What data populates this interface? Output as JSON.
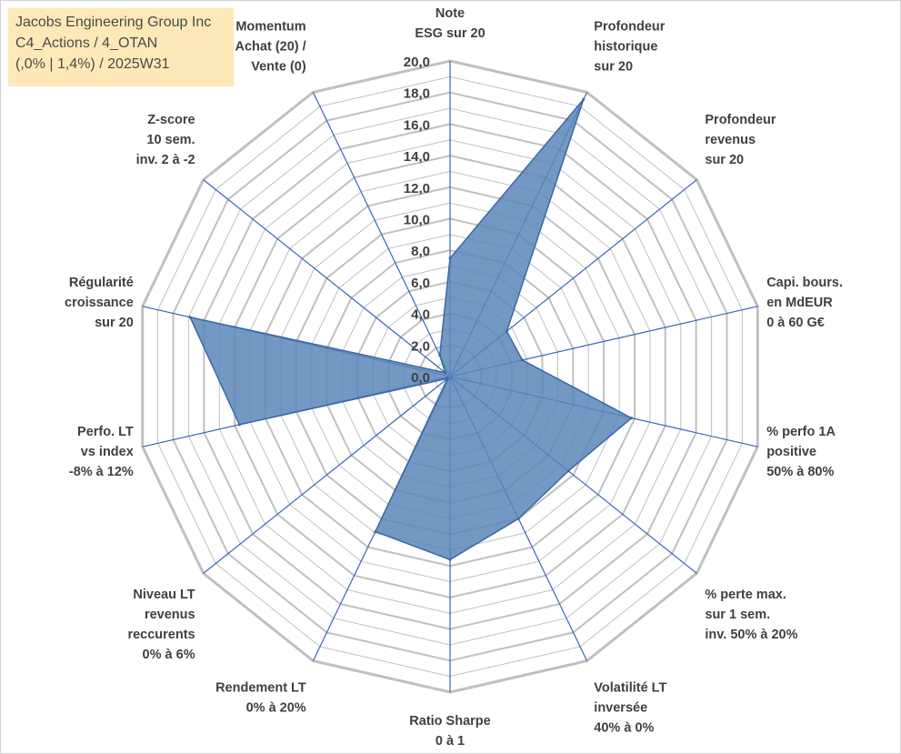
{
  "title_box": {
    "line1": "Jacobs Engineering Group Inc",
    "line2": "C4_Actions / 4_OTAN",
    "line3": "(,0% | 1,4%) / 2025W31"
  },
  "colors": {
    "fill": "#5b86b8",
    "stroke": "#3b67a4",
    "spoke": "#3a66b4",
    "ring": "#c0c0c0",
    "title_bg": "#fde9b8"
  },
  "chart_data": {
    "type": "radar",
    "rmax": 20,
    "tick_labels": [
      "0,0",
      "2,0",
      "4,0",
      "6,0",
      "8,0",
      "10,0",
      "12,0",
      "14,0",
      "16,0",
      "18,0",
      "20,0"
    ],
    "axes": [
      {
        "label": [
          "Note",
          "ESG sur 20"
        ],
        "value": 7.5
      },
      {
        "label": [
          "Profondeur",
          "historique",
          "sur 20"
        ],
        "value": 19.5
      },
      {
        "label": [
          "Profondeur",
          "revenus",
          "sur 20"
        ],
        "value": 4.6
      },
      {
        "label": [
          "Capi. bours.",
          "en MdEUR",
          "0 à 60 G€"
        ],
        "value": 4.7
      },
      {
        "label": [
          "% perfo 1A",
          "positive",
          "50% à 80%"
        ],
        "value": 11.8
      },
      {
        "label": [
          "% perte max.",
          "sur 1 sem.",
          "inv. 50% à 20%"
        ],
        "value": 9.6
      },
      {
        "label": [
          "Volatilité LT",
          "inversée",
          "40% à 0%"
        ],
        "value": 10.0
      },
      {
        "label": [
          "Ratio Sharpe",
          "0 à 1"
        ],
        "value": 11.6
      },
      {
        "label": [
          "Rendement LT",
          "0% à 20%"
        ],
        "value": 10.9
      },
      {
        "label": [
          "Niveau LT",
          "revenus",
          "reccurents",
          "0% à 6%"
        ],
        "value": 0.2
      },
      {
        "label": [
          "Perfo. LT",
          "vs index",
          "-8% à 12%"
        ],
        "value": 13.7
      },
      {
        "label": [
          "Régularité",
          "croissance",
          "sur 20"
        ],
        "value": 16.9
      },
      {
        "label": [
          "Z-score",
          "10 sem.",
          "inv. 2 à -2"
        ],
        "value": 0.4
      },
      {
        "label": [
          "Momentum",
          "Achat (20) /",
          "Vente (0)"
        ],
        "value": 1.5
      }
    ]
  }
}
